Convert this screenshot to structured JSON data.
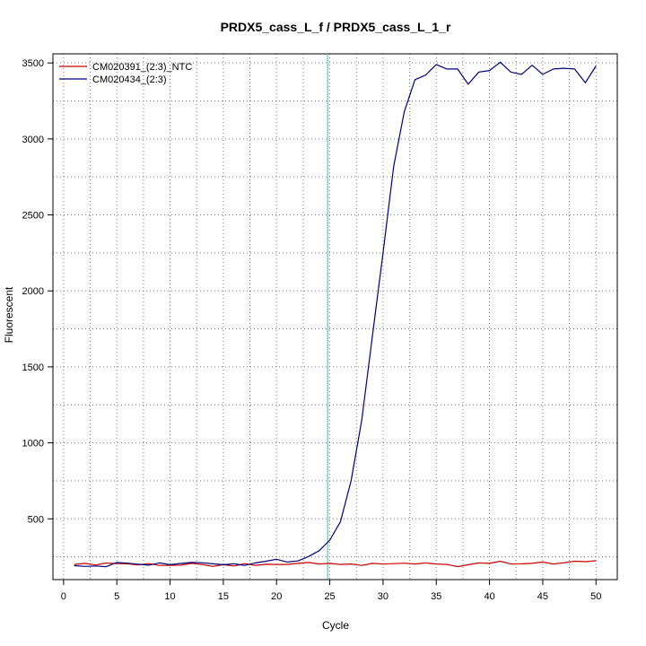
{
  "chart_data": {
    "type": "line",
    "title": "PRDX5_cass_L_f / PRDX5_cass_L_1_r",
    "xlabel": "Cycle",
    "ylabel": "Fluorescent",
    "xlim": [
      -1,
      52
    ],
    "ylim": [
      100,
      3560
    ],
    "x_ticks": [
      0,
      5,
      10,
      15,
      20,
      25,
      30,
      35,
      40,
      45,
      50
    ],
    "y_ticks": [
      500,
      1000,
      1500,
      2000,
      2500,
      3000,
      3500
    ],
    "vgrid_minor": [
      2.5,
      7.5,
      12.5,
      17.5,
      22.5,
      27.5,
      32.5,
      37.5,
      42.5,
      47.5
    ],
    "hgrid_minor": [
      250,
      750,
      1250,
      1750,
      2250,
      2750,
      3250
    ],
    "grid": true,
    "legend_position": "top-left",
    "threshold_cycle": 24.8,
    "threshold_color": "#33d6d6",
    "x": [
      1,
      2,
      3,
      4,
      5,
      6,
      7,
      8,
      9,
      10,
      11,
      12,
      13,
      14,
      15,
      16,
      17,
      18,
      19,
      20,
      21,
      22,
      23,
      24,
      25,
      26,
      27,
      28,
      29,
      30,
      31,
      32,
      33,
      34,
      35,
      36,
      37,
      38,
      39,
      40,
      41,
      42,
      43,
      44,
      45,
      46,
      47,
      48,
      49,
      50
    ],
    "series": [
      {
        "name": "CM020391_(2:3)_NTC",
        "color": "#cc0000",
        "values": [
          200,
          207,
          196,
          209,
          205,
          204,
          196,
          205,
          193,
          193,
          195,
          207,
          200,
          187,
          198,
          190,
          205,
          194,
          201,
          200,
          200,
          207,
          213,
          203,
          207,
          200,
          203,
          193,
          207,
          202,
          205,
          208,
          203,
          210,
          203,
          200,
          185,
          198,
          210,
          207,
          221,
          203,
          204,
          207,
          216,
          203,
          211,
          221,
          218,
          224
        ]
      },
      {
        "name": "CM020434_(2:3)",
        "color": "#00007f",
        "values": [
          192,
          187,
          190,
          185,
          213,
          208,
          201,
          195,
          210,
          198,
          206,
          213,
          211,
          204,
          198,
          204,
          193,
          210,
          221,
          234,
          216,
          223,
          252,
          290,
          360,
          480,
          750,
          1150,
          1700,
          2250,
          2820,
          3180,
          3390,
          3420,
          3490,
          3460,
          3460,
          3360,
          3440,
          3450,
          3505,
          3440,
          3425,
          3485,
          3425,
          3460,
          3465,
          3460,
          3370,
          3480
        ]
      }
    ]
  }
}
